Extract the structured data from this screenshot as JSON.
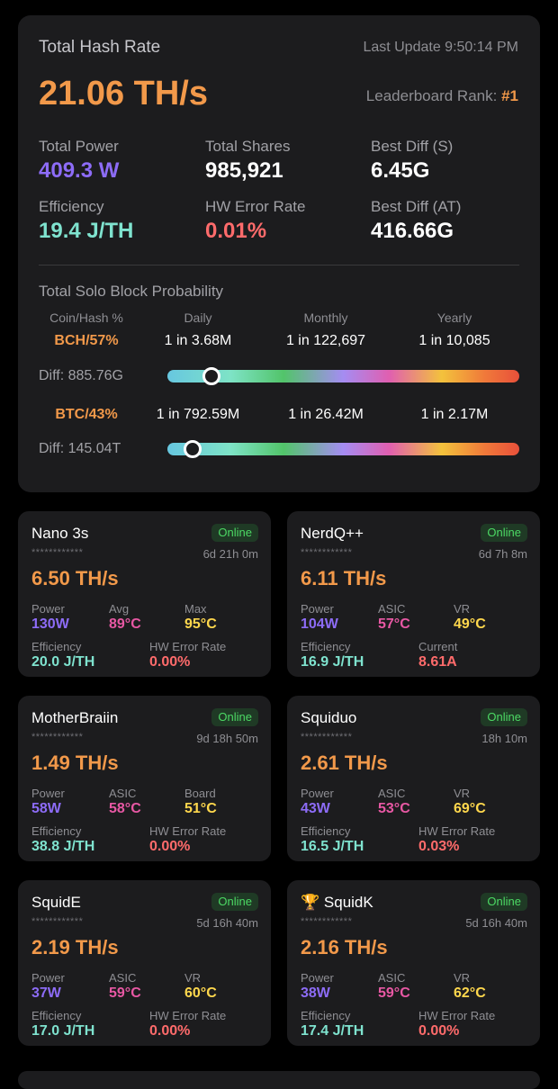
{
  "summary": {
    "title": "Total Hash Rate",
    "last_update": "Last Update 9:50:14 PM",
    "hash_rate": "21.06 TH/s",
    "leaderboard_label": "Leaderboard Rank:",
    "leaderboard_rank": "#1",
    "stats": {
      "total_power_label": "Total Power",
      "total_power": "409.3 W",
      "total_shares_label": "Total Shares",
      "total_shares": "985,921",
      "best_diff_s_label": "Best Diff (S)",
      "best_diff_s": "6.45G",
      "efficiency_label": "Efficiency",
      "efficiency": "19.4 J/TH",
      "hw_error_label": "HW Error Rate",
      "hw_error": "0.01%",
      "best_diff_at_label": "Best Diff (AT)",
      "best_diff_at": "416.66G"
    },
    "probability": {
      "title": "Total Solo Block Probability",
      "headers": [
        "Coin/Hash %",
        "Daily",
        "Monthly",
        "Yearly"
      ],
      "rows": [
        {
          "coin": "BCH/57%",
          "daily": "1 in 3.68M",
          "monthly": "1 in 122,697",
          "yearly": "1 in 10,085",
          "diff": "Diff: 885.76G",
          "level": 0.1
        },
        {
          "coin": "BTC/43%",
          "daily": "1 in 792.59M",
          "monthly": "1 in 26.42M",
          "yearly": "1 in 2.17M",
          "diff": "Diff: 145.04T",
          "level": 0.045
        }
      ]
    }
  },
  "miners": [
    {
      "name": "Nano 3s",
      "status": "Online",
      "masked": "************",
      "uptime": "6d 21h 0m",
      "hash": "6.50 TH/s",
      "l1": "Power",
      "v1": "130W",
      "l2": "Avg",
      "v2": "89°C",
      "l3": "Max",
      "v3": "95°C",
      "l4": "Efficiency",
      "v4": "20.0 J/TH",
      "l5": "HW Error Rate",
      "v5": "0.00%",
      "trophy": ""
    },
    {
      "name": "NerdQ++",
      "status": "Online",
      "masked": "************",
      "uptime": "6d 7h 8m",
      "hash": "6.11 TH/s",
      "l1": "Power",
      "v1": "104W",
      "l2": "ASIC",
      "v2": "57°C",
      "l3": "VR",
      "v3": "49°C",
      "l4": "Efficiency",
      "v4": "16.9 J/TH",
      "l5": "Current",
      "v5": "8.61A",
      "trophy": ""
    },
    {
      "name": "MotherBraiin",
      "status": "Online",
      "masked": "************",
      "uptime": "9d 18h 50m",
      "hash": "1.49 TH/s",
      "l1": "Power",
      "v1": "58W",
      "l2": "ASIC",
      "v2": "58°C",
      "l3": "Board",
      "v3": "51°C",
      "l4": "Efficiency",
      "v4": "38.8 J/TH",
      "l5": "HW Error Rate",
      "v5": "0.00%",
      "trophy": ""
    },
    {
      "name": "Squiduo",
      "status": "Online",
      "masked": "************",
      "uptime": "18h 10m",
      "hash": "2.61 TH/s",
      "l1": "Power",
      "v1": "43W",
      "l2": "ASIC",
      "v2": "53°C",
      "l3": "VR",
      "v3": "69°C",
      "l4": "Efficiency",
      "v4": "16.5 J/TH",
      "l5": "HW Error Rate",
      "v5": "0.03%",
      "trophy": ""
    },
    {
      "name": "SquidE",
      "status": "Online",
      "masked": "************",
      "uptime": "5d 16h 40m",
      "hash": "2.19 TH/s",
      "l1": "Power",
      "v1": "37W",
      "l2": "ASIC",
      "v2": "59°C",
      "l3": "VR",
      "v3": "60°C",
      "l4": "Efficiency",
      "v4": "17.0 J/TH",
      "l5": "HW Error Rate",
      "v5": "0.00%",
      "trophy": ""
    },
    {
      "name": "SquidK",
      "status": "Online",
      "masked": "************",
      "uptime": "5d 16h 40m",
      "hash": "2.16 TH/s",
      "l1": "Power",
      "v1": "38W",
      "l2": "ASIC",
      "v2": "59°C",
      "l3": "VR",
      "v3": "62°C",
      "l4": "Efficiency",
      "v4": "17.4 J/TH",
      "l5": "HW Error Rate",
      "v5": "0.00%",
      "trophy": "🏆"
    }
  ],
  "colors": {
    "accent_orange": "#f2994a",
    "power_purple": "#8d6cf7",
    "efficiency_teal": "#7fe3cf",
    "error_red": "#ff6b6b",
    "temp_pink": "#e858a4",
    "temp_yellow": "#ffd84d",
    "online_green": "#4cd964"
  }
}
